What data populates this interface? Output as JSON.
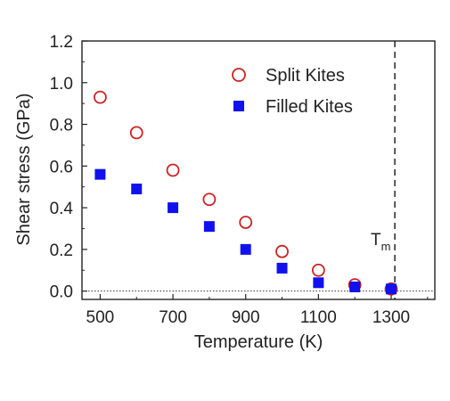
{
  "chart_data": {
    "type": "scatter",
    "xlabel": "Temperature (K)",
    "ylabel": "Shear stress (GPa)",
    "xlim": [
      450,
      1420
    ],
    "ylim": [
      -0.04,
      1.2
    ],
    "xticks": [
      500,
      700,
      900,
      1100,
      1300
    ],
    "xtick_labels": [
      "500",
      "700",
      "900",
      "1100",
      "1300"
    ],
    "yticks": [
      0.0,
      0.2,
      0.4,
      0.6,
      0.8,
      1.0,
      1.2
    ],
    "ytick_labels": [
      "0.0",
      "0.2",
      "0.4",
      "0.6",
      "0.8",
      "1.0",
      "1.2"
    ],
    "legend_position": "top-right",
    "grid": false,
    "series": [
      {
        "name": "Split Kites",
        "marker": "open-circle",
        "color": "#cc2222",
        "x": [
          500,
          600,
          700,
          800,
          900,
          1000,
          1100,
          1200,
          1300
        ],
        "y": [
          0.93,
          0.76,
          0.58,
          0.44,
          0.33,
          0.19,
          0.1,
          0.03,
          0.01
        ]
      },
      {
        "name": "Filled Kites",
        "marker": "filled-square",
        "color": "#1111ee",
        "x": [
          500,
          600,
          700,
          800,
          900,
          1000,
          1100,
          1200,
          1300
        ],
        "y": [
          0.56,
          0.49,
          0.4,
          0.31,
          0.2,
          0.11,
          0.04,
          0.02,
          0.01
        ]
      }
    ],
    "annotations": {
      "melting_line_x": 1310,
      "melting_label": "T",
      "melting_label_sub": "m",
      "zero_reference_y": 0.0
    }
  }
}
